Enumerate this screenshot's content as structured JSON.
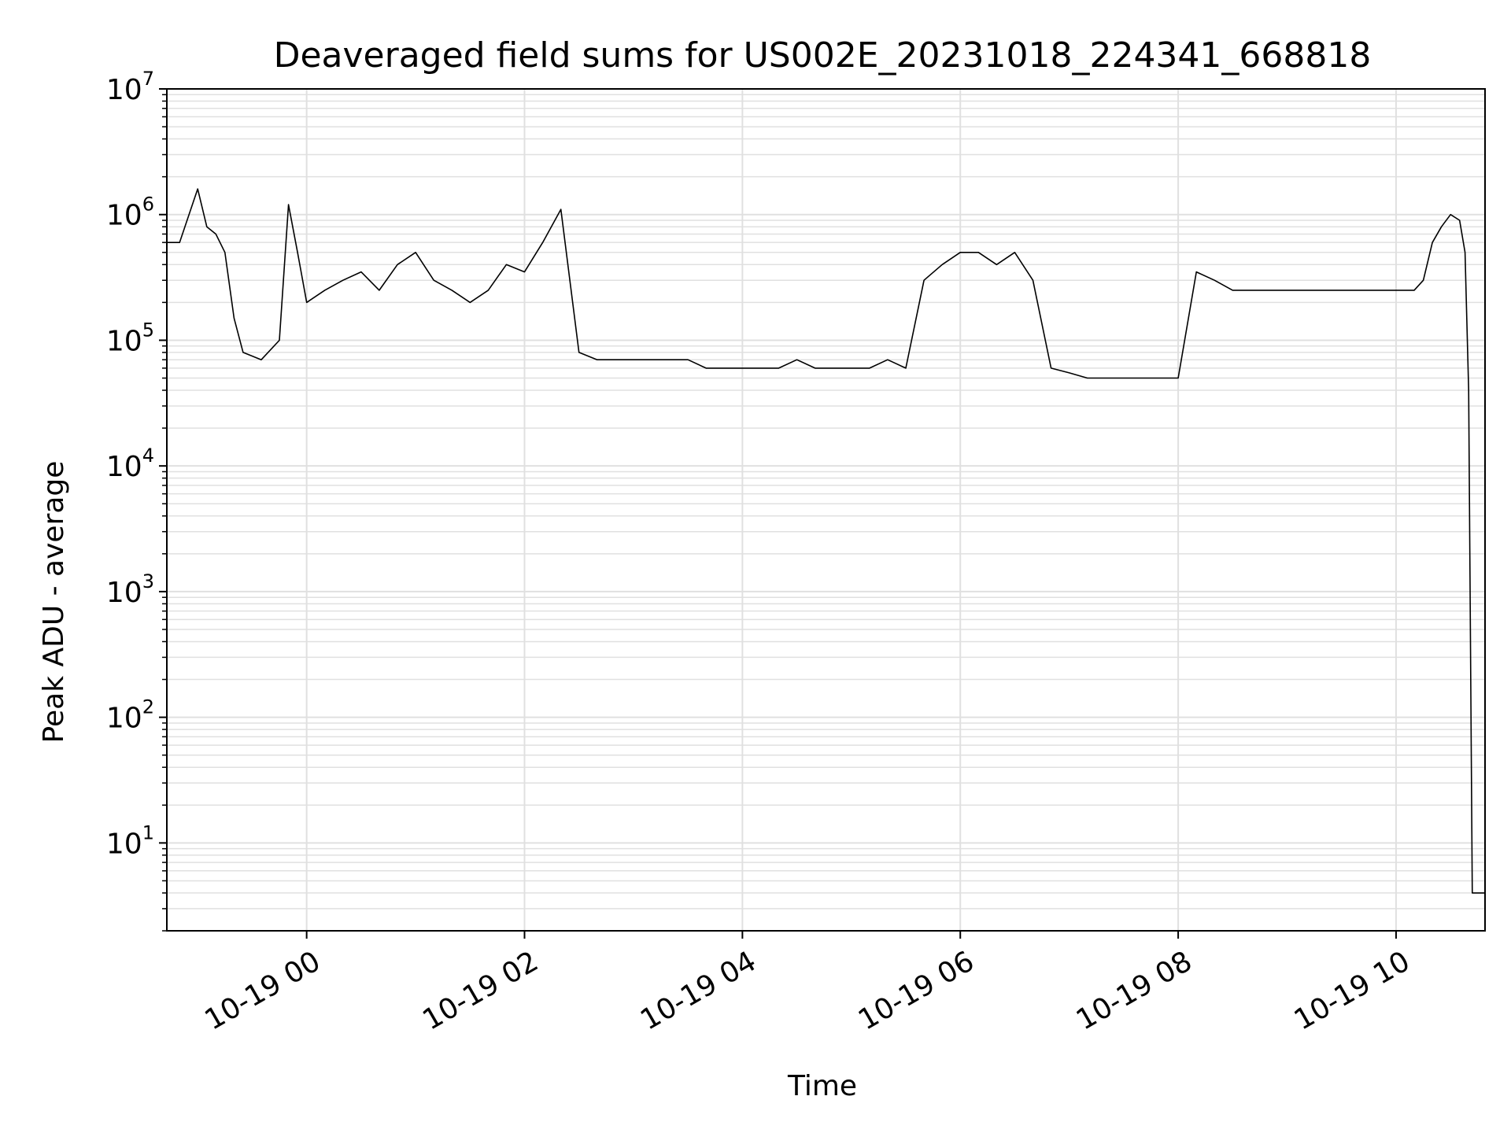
{
  "chart_data": {
    "type": "line",
    "title": "Deaveraged field sums for US002E_20231018_224341_668818",
    "xlabel": "Time",
    "ylabel": "Peak ADU - average",
    "yscale": "log",
    "ylim": [
      2,
      10000000
    ],
    "xlim": [
      "2023-10-18 22:43",
      "2023-10-19 10:49"
    ],
    "grid": true,
    "line_color": "#000000",
    "grid_color": "#e0e0e0",
    "xticks": [
      {
        "t": "2023-10-19 00:00",
        "label": "10-19 00"
      },
      {
        "t": "2023-10-19 02:00",
        "label": "10-19 02"
      },
      {
        "t": "2023-10-19 04:00",
        "label": "10-19 04"
      },
      {
        "t": "2023-10-19 06:00",
        "label": "10-19 06"
      },
      {
        "t": "2023-10-19 08:00",
        "label": "10-19 08"
      },
      {
        "t": "2023-10-19 10:00",
        "label": "10-19 10"
      }
    ],
    "yticks": [
      {
        "value": 10,
        "base": "10",
        "exp": "1"
      },
      {
        "value": 100,
        "base": "10",
        "exp": "2"
      },
      {
        "value": 1000,
        "base": "10",
        "exp": "3"
      },
      {
        "value": 10000,
        "base": "10",
        "exp": "4"
      },
      {
        "value": 100000,
        "base": "10",
        "exp": "5"
      },
      {
        "value": 1000000,
        "base": "10",
        "exp": "6"
      },
      {
        "value": 10000000,
        "base": "10",
        "exp": "7"
      }
    ],
    "series": [
      {
        "x": [
          "2023-10-18 22:43",
          "2023-10-18 22:50",
          "2023-10-18 23:00",
          "2023-10-18 23:05",
          "2023-10-18 23:10",
          "2023-10-18 23:15",
          "2023-10-18 23:20",
          "2023-10-18 23:25",
          "2023-10-18 23:35",
          "2023-10-18 23:45",
          "2023-10-18 23:50",
          "2023-10-18 23:55",
          "2023-10-19 00:00",
          "2023-10-19 00:10",
          "2023-10-19 00:20",
          "2023-10-19 00:30",
          "2023-10-19 00:40",
          "2023-10-19 00:50",
          "2023-10-19 01:00",
          "2023-10-19 01:10",
          "2023-10-19 01:20",
          "2023-10-19 01:30",
          "2023-10-19 01:40",
          "2023-10-19 01:50",
          "2023-10-19 02:00",
          "2023-10-19 02:10",
          "2023-10-19 02:20",
          "2023-10-19 02:30",
          "2023-10-19 02:40",
          "2023-10-19 02:50",
          "2023-10-19 03:00",
          "2023-10-19 03:10",
          "2023-10-19 03:20",
          "2023-10-19 03:30",
          "2023-10-19 03:40",
          "2023-10-19 03:50",
          "2023-10-19 04:00",
          "2023-10-19 04:10",
          "2023-10-19 04:20",
          "2023-10-19 04:30",
          "2023-10-19 04:40",
          "2023-10-19 04:50",
          "2023-10-19 05:00",
          "2023-10-19 05:10",
          "2023-10-19 05:20",
          "2023-10-19 05:30",
          "2023-10-19 05:40",
          "2023-10-19 05:50",
          "2023-10-19 06:00",
          "2023-10-19 06:10",
          "2023-10-19 06:20",
          "2023-10-19 06:30",
          "2023-10-19 06:40",
          "2023-10-19 06:50",
          "2023-10-19 07:00",
          "2023-10-19 07:10",
          "2023-10-19 07:20",
          "2023-10-19 07:30",
          "2023-10-19 07:40",
          "2023-10-19 07:50",
          "2023-10-19 08:00",
          "2023-10-19 08:10",
          "2023-10-19 08:20",
          "2023-10-19 08:30",
          "2023-10-19 08:40",
          "2023-10-19 08:50",
          "2023-10-19 09:00",
          "2023-10-19 09:10",
          "2023-10-19 09:20",
          "2023-10-19 09:30",
          "2023-10-19 09:40",
          "2023-10-19 09:50",
          "2023-10-19 10:00",
          "2023-10-19 10:10",
          "2023-10-19 10:15",
          "2023-10-19 10:20",
          "2023-10-19 10:25",
          "2023-10-19 10:30",
          "2023-10-19 10:35",
          "2023-10-19 10:38",
          "2023-10-19 10:40",
          "2023-10-19 10:42",
          "2023-10-19 10:49"
        ],
        "y": [
          600000,
          600000,
          1600000,
          800000,
          700000,
          500000,
          150000,
          80000,
          70000,
          100000,
          1200000,
          500000,
          200000,
          250000,
          300000,
          350000,
          250000,
          400000,
          500000,
          300000,
          250000,
          200000,
          250000,
          400000,
          350000,
          600000,
          1100000,
          80000,
          70000,
          70000,
          70000,
          70000,
          70000,
          70000,
          60000,
          60000,
          60000,
          60000,
          60000,
          70000,
          60000,
          60000,
          60000,
          60000,
          70000,
          60000,
          300000,
          400000,
          500000,
          500000,
          400000,
          500000,
          300000,
          60000,
          55000,
          50000,
          50000,
          50000,
          50000,
          50000,
          50000,
          350000,
          300000,
          250000,
          250000,
          250000,
          250000,
          250000,
          250000,
          250000,
          250000,
          250000,
          250000,
          250000,
          300000,
          600000,
          800000,
          1000000,
          900000,
          500000,
          40000,
          4,
          4
        ]
      }
    ]
  }
}
